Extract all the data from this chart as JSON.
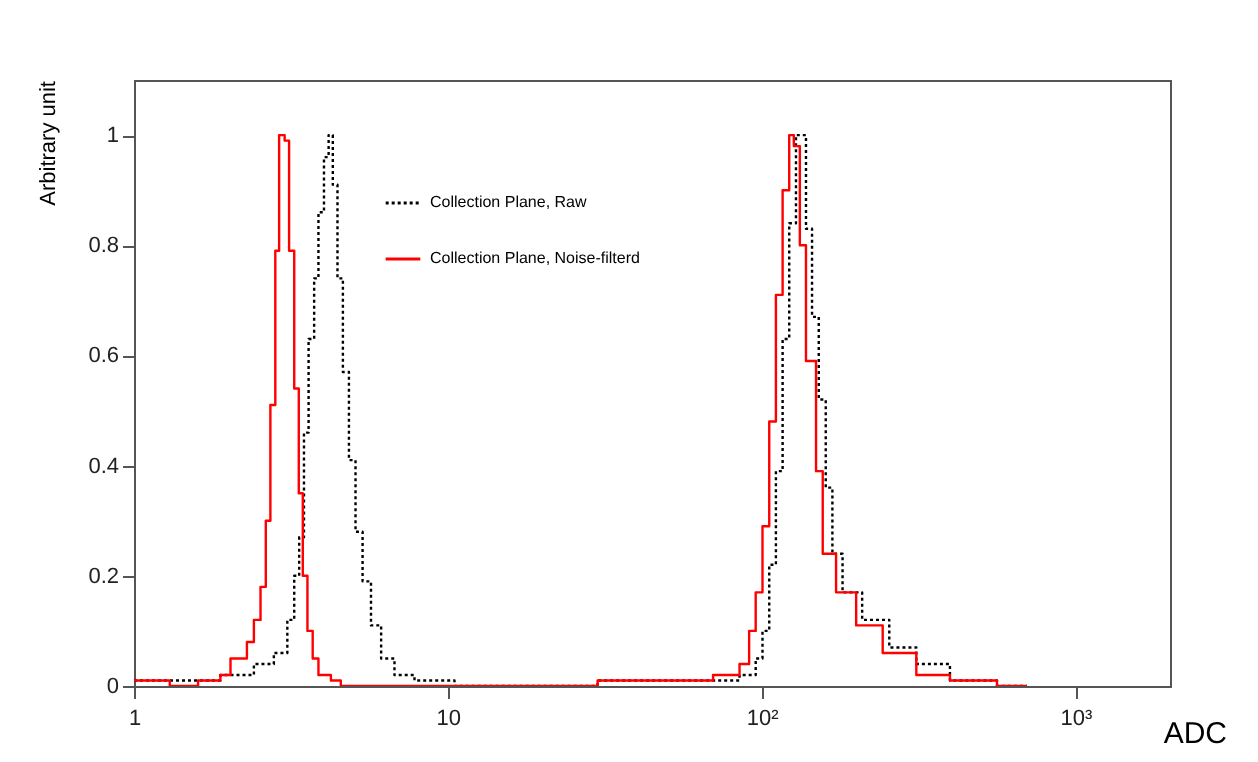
{
  "chart_data": {
    "type": "step",
    "xlabel": "ADC",
    "ylabel": "Arbitrary unit",
    "log": "x",
    "xlim": [
      1,
      2000
    ],
    "ylim": [
      0,
      1.1
    ],
    "xticks": [
      1,
      10,
      {
        "value": 100,
        "label": "10²"
      },
      {
        "value": 1000,
        "label": "10³"
      }
    ],
    "yticks": [
      0,
      0.2,
      0.4,
      0.6,
      0.8,
      1
    ],
    "grid": false,
    "legend": "top left",
    "series": [
      {
        "name": "Collection Plane, Raw",
        "color": "#000000",
        "line_style": "dotted",
        "x": [
          1,
          1.5,
          1.885,
          2.08,
          2.41,
          2.79,
          3.08,
          3.24,
          3.36,
          3.48,
          3.6,
          3.75,
          3.87,
          4.03,
          4.17,
          4.3,
          4.45,
          4.63,
          4.84,
          5.08,
          5.35,
          5.69,
          6.13,
          6.76,
          7.83,
          10.5,
          30,
          60,
          85,
          95.7,
          100.6,
          105.7,
          111,
          116.6,
          122.4,
          128.6,
          133.6,
          138.4,
          144.7,
          152,
          160,
          168,
          181,
          209,
          255,
          311,
          398,
          562,
          700
        ],
        "values": [
          0.01,
          0.01,
          0.02,
          0.02,
          0.04,
          0.06,
          0.12,
          0.2,
          0.27,
          0.46,
          0.63,
          0.74,
          0.86,
          0.96,
          1.0,
          0.91,
          0.74,
          0.57,
          0.41,
          0.28,
          0.19,
          0.11,
          0.05,
          0.02,
          0.01,
          0,
          0.01,
          0.01,
          0.02,
          0.05,
          0.1,
          0.22,
          0.39,
          0.63,
          0.84,
          1.0,
          1.0,
          0.83,
          0.67,
          0.52,
          0.36,
          0.24,
          0.17,
          0.12,
          0.07,
          0.04,
          0.01,
          0,
          0
        ]
      },
      {
        "name": "Collection Plane, Noise-filterd",
        "color": "#ff0000",
        "line_style": "solid",
        "x": [
          1,
          1.3,
          1.6,
          1.885,
          2.03,
          2.29,
          2.41,
          2.53,
          2.63,
          2.72,
          2.82,
          2.9,
          3.02,
          3.12,
          3.24,
          3.35,
          3.45,
          3.57,
          3.71,
          3.87,
          4.24,
          4.56,
          10,
          30,
          50,
          70,
          85,
          91.2,
          95.7,
          100.6,
          105.7,
          111,
          116.6,
          122.4,
          126.6,
          132.3,
          138.4,
          149,
          156.5,
          172.6,
          200,
          243,
          311,
          398,
          562,
          700
        ],
        "values": [
          0.01,
          0,
          0.01,
          0.02,
          0.05,
          0.08,
          0.12,
          0.18,
          0.3,
          0.51,
          0.79,
          1.0,
          0.99,
          0.79,
          0.54,
          0.35,
          0.2,
          0.1,
          0.05,
          0.02,
          0.01,
          0,
          0,
          0.01,
          0.01,
          0.02,
          0.04,
          0.1,
          0.17,
          0.29,
          0.48,
          0.71,
          0.9,
          1.0,
          0.98,
          0.8,
          0.59,
          0.39,
          0.24,
          0.17,
          0.11,
          0.06,
          0.02,
          0.01,
          0,
          0
        ]
      }
    ]
  }
}
